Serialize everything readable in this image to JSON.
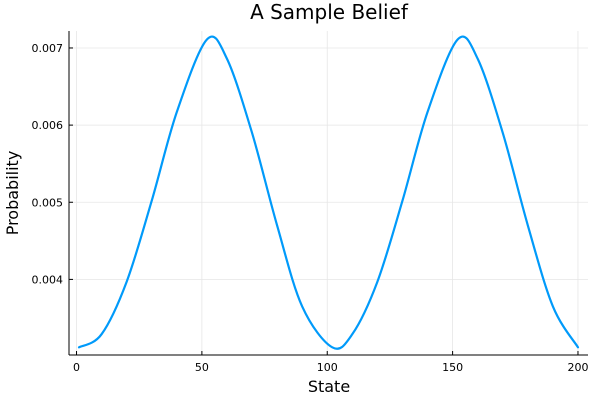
{
  "chart_data": {
    "type": "line",
    "title": "A Sample Belief",
    "xlabel": "State",
    "ylabel": "Probability",
    "xlim": [
      -3,
      204
    ],
    "ylim": [
      0.00302,
      0.00722
    ],
    "xticks": [
      0,
      50,
      100,
      150,
      200
    ],
    "xtick_labels": [
      "0",
      "50",
      "100",
      "150",
      "200"
    ],
    "yticks": [
      0.004,
      0.005,
      0.006,
      0.007
    ],
    "ytick_labels": [
      "0.004",
      "0.005",
      "0.006",
      "0.007"
    ],
    "grid": true,
    "legend": "none",
    "color": "#009AFA",
    "series": [
      {
        "x": [
          1,
          10,
          20,
          30,
          40,
          52,
          60,
          70,
          80,
          90,
          102,
          110,
          120,
          130,
          140,
          152,
          160,
          170,
          180,
          190,
          200
        ],
        "y": [
          0.00312,
          0.00329,
          0.00397,
          0.00502,
          0.00617,
          0.00711,
          0.00686,
          0.0059,
          0.0047,
          0.00365,
          0.00312,
          0.00329,
          0.00397,
          0.00502,
          0.00617,
          0.00711,
          0.00686,
          0.0059,
          0.0047,
          0.00365,
          0.00312
        ]
      }
    ]
  }
}
